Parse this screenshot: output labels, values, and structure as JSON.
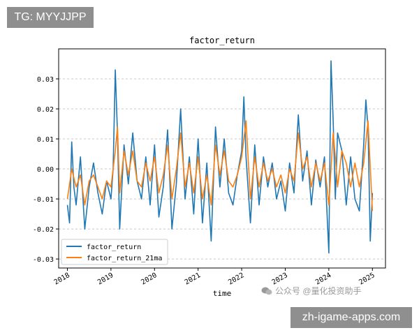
{
  "overlays": {
    "top_label": "TG: MYYJJPP",
    "bottom_label": "zh-igame-apps.com",
    "watermark": "公众号 @量化投资助手"
  },
  "chart_data": {
    "type": "line",
    "title": "factor_return",
    "xlabel": "time",
    "ylabel": "",
    "xlim": [
      2017.8,
      2025.3
    ],
    "ylim": [
      -0.033,
      0.04
    ],
    "x_ticks": [
      2018,
      2019,
      2020,
      2021,
      2022,
      2023,
      2024,
      2025
    ],
    "x_tick_labels": [
      "2018",
      "2019",
      "2020",
      "2021",
      "2022",
      "2023",
      "2024",
      "2025"
    ],
    "y_ticks": [
      -0.03,
      -0.02,
      -0.01,
      0.0,
      0.01,
      0.02,
      0.03
    ],
    "y_tick_labels": [
      "-0.03",
      "-0.02",
      "-0.01",
      "0.00",
      "0.01",
      "0.02",
      "0.03"
    ],
    "grid": "y",
    "legend": "lower-left",
    "series": [
      {
        "name": "factor_return",
        "color": "#1f77b4",
        "x": [
          2018.0,
          2018.05,
          2018.1,
          2018.15,
          2018.2,
          2018.3,
          2018.4,
          2018.5,
          2018.6,
          2018.7,
          2018.8,
          2018.9,
          2019.0,
          2019.05,
          2019.1,
          2019.15,
          2019.2,
          2019.3,
          2019.4,
          2019.5,
          2019.6,
          2019.7,
          2019.8,
          2019.9,
          2020.0,
          2020.1,
          2020.2,
          2020.3,
          2020.4,
          2020.5,
          2020.6,
          2020.7,
          2020.8,
          2020.9,
          2021.0,
          2021.1,
          2021.2,
          2021.3,
          2021.4,
          2021.5,
          2021.6,
          2021.7,
          2021.8,
          2021.9,
          2022.0,
          2022.05,
          2022.1,
          2022.2,
          2022.3,
          2022.4,
          2022.5,
          2022.6,
          2022.7,
          2022.8,
          2022.9,
          2023.0,
          2023.1,
          2023.2,
          2023.3,
          2023.4,
          2023.5,
          2023.6,
          2023.7,
          2023.8,
          2023.9,
          2024.0,
          2024.05,
          2024.1,
          2024.15,
          2024.2,
          2024.3,
          2024.4,
          2024.5,
          2024.6,
          2024.7,
          2024.8,
          2024.85,
          2024.9,
          2024.95,
          2025.0
        ],
        "values": [
          -0.012,
          -0.018,
          0.009,
          -0.006,
          -0.012,
          0.004,
          -0.02,
          -0.006,
          0.002,
          -0.008,
          -0.015,
          -0.004,
          -0.01,
          0.0,
          0.033,
          0.012,
          -0.02,
          0.008,
          -0.005,
          0.012,
          -0.004,
          -0.01,
          0.004,
          -0.012,
          0.008,
          -0.016,
          -0.006,
          0.013,
          -0.02,
          -0.005,
          0.02,
          -0.01,
          0.004,
          -0.015,
          0.01,
          -0.018,
          0.002,
          -0.024,
          0.014,
          -0.006,
          0.01,
          -0.008,
          -0.012,
          -0.002,
          0.006,
          0.024,
          0.004,
          -0.018,
          0.008,
          -0.012,
          0.004,
          -0.006,
          0.002,
          -0.01,
          -0.004,
          -0.014,
          0.002,
          -0.008,
          0.018,
          -0.004,
          0.006,
          -0.012,
          0.003,
          -0.006,
          0.004,
          -0.028,
          0.036,
          0.016,
          -0.01,
          0.012,
          0.006,
          -0.012,
          0.004,
          -0.01,
          -0.014,
          0.008,
          0.023,
          0.014,
          -0.024,
          -0.008
        ]
      },
      {
        "name": "factor_return_21ma",
        "color": "#ff7f0e",
        "x": [
          2018.0,
          2018.1,
          2018.2,
          2018.3,
          2018.4,
          2018.5,
          2018.6,
          2018.7,
          2018.8,
          2018.9,
          2019.0,
          2019.1,
          2019.15,
          2019.2,
          2019.3,
          2019.4,
          2019.5,
          2019.6,
          2019.7,
          2019.8,
          2019.9,
          2020.0,
          2020.1,
          2020.2,
          2020.3,
          2020.4,
          2020.5,
          2020.6,
          2020.7,
          2020.8,
          2020.9,
          2021.0,
          2021.1,
          2021.2,
          2021.3,
          2021.4,
          2021.5,
          2021.6,
          2021.7,
          2021.8,
          2021.9,
          2022.0,
          2022.1,
          2022.2,
          2022.3,
          2022.4,
          2022.5,
          2022.6,
          2022.7,
          2022.8,
          2022.9,
          2023.0,
          2023.1,
          2023.2,
          2023.3,
          2023.4,
          2023.5,
          2023.6,
          2023.7,
          2023.8,
          2023.9,
          2024.0,
          2024.1,
          2024.15,
          2024.2,
          2024.3,
          2024.4,
          2024.5,
          2024.6,
          2024.7,
          2024.8,
          2024.9,
          2025.0
        ],
        "values": [
          -0.01,
          0.0,
          -0.006,
          -0.002,
          -0.012,
          -0.004,
          -0.002,
          -0.006,
          -0.01,
          -0.004,
          -0.006,
          0.006,
          0.014,
          -0.008,
          0.006,
          -0.002,
          0.006,
          -0.004,
          -0.006,
          0.002,
          -0.004,
          0.004,
          -0.008,
          -0.002,
          0.008,
          -0.01,
          0.0,
          0.012,
          -0.006,
          0.002,
          -0.008,
          0.004,
          -0.01,
          -0.002,
          -0.012,
          0.008,
          -0.002,
          0.006,
          -0.004,
          -0.006,
          -0.002,
          0.004,
          0.016,
          -0.01,
          0.004,
          -0.006,
          0.002,
          -0.004,
          0.0,
          -0.006,
          -0.002,
          -0.008,
          0.0,
          -0.004,
          0.012,
          0.0,
          0.004,
          -0.006,
          0.002,
          -0.004,
          0.002,
          -0.012,
          0.012,
          0.004,
          -0.006,
          0.006,
          0.002,
          -0.006,
          0.002,
          -0.006,
          0.002,
          0.016,
          -0.014
        ]
      }
    ]
  }
}
